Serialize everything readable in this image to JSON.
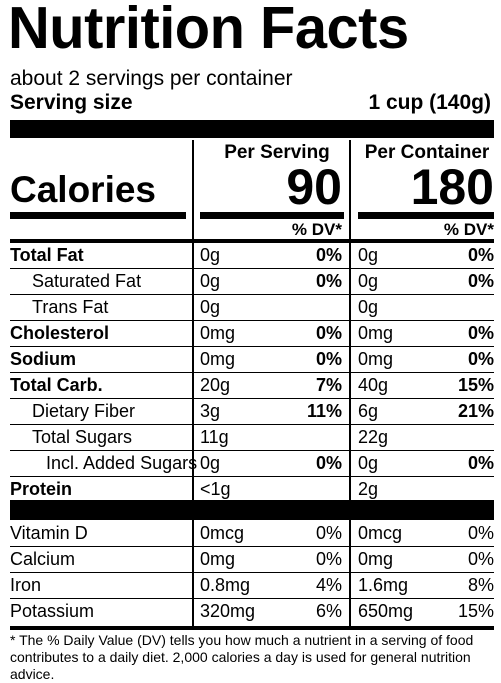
{
  "title": "Nutrition Facts",
  "servings_per_container": "about 2 servings per container",
  "serving_size_label": "Serving size",
  "serving_size_value": "1 cup (140g)",
  "per_serving_header": "Per Serving",
  "per_container_header": "Per Container",
  "calories_label": "Calories",
  "calories_serving": "90",
  "calories_container": "180",
  "dv_header": "% DV*",
  "nutrients": [
    {
      "label": "Total Fat",
      "bold": true,
      "indent": 0,
      "s_amt": "0g",
      "s_dv": "0%",
      "c_amt": "0g",
      "c_dv": "0%"
    },
    {
      "label": "Saturated Fat",
      "bold": false,
      "indent": 1,
      "s_amt": "0g",
      "s_dv": "0%",
      "c_amt": "0g",
      "c_dv": "0%"
    },
    {
      "label": "Trans Fat",
      "bold": false,
      "indent": 1,
      "s_amt": "0g",
      "s_dv": "",
      "c_amt": "0g",
      "c_dv": ""
    },
    {
      "label": "Cholesterol",
      "bold": true,
      "indent": 0,
      "s_amt": "0mg",
      "s_dv": "0%",
      "c_amt": "0mg",
      "c_dv": "0%"
    },
    {
      "label": "Sodium",
      "bold": true,
      "indent": 0,
      "s_amt": "0mg",
      "s_dv": "0%",
      "c_amt": "0mg",
      "c_dv": "0%"
    },
    {
      "label": "Total Carb.",
      "bold": true,
      "indent": 0,
      "s_amt": "20g",
      "s_dv": "7%",
      "c_amt": "40g",
      "c_dv": "15%"
    },
    {
      "label": "Dietary Fiber",
      "bold": false,
      "indent": 1,
      "s_amt": "3g",
      "s_dv": "11%",
      "c_amt": "6g",
      "c_dv": "21%"
    },
    {
      "label": "Total Sugars",
      "bold": false,
      "indent": 1,
      "s_amt": "11g",
      "s_dv": "",
      "c_amt": "22g",
      "c_dv": ""
    },
    {
      "label": "Incl. Added Sugars",
      "bold": false,
      "indent": 2,
      "s_amt": "0g",
      "s_dv": "0%",
      "c_amt": "0g",
      "c_dv": "0%"
    },
    {
      "label": "Protein",
      "bold": true,
      "indent": 0,
      "s_amt": "<1g",
      "s_dv": "",
      "c_amt": "2g",
      "c_dv": ""
    }
  ],
  "vitamins": [
    {
      "label": "Vitamin D",
      "s_amt": "0mcg",
      "s_dv": "0%",
      "c_amt": "0mcg",
      "c_dv": "0%"
    },
    {
      "label": "Calcium",
      "s_amt": "0mg",
      "s_dv": "0%",
      "c_amt": "0mg",
      "c_dv": "0%"
    },
    {
      "label": "Iron",
      "s_amt": "0.8mg",
      "s_dv": "4%",
      "c_amt": "1.6mg",
      "c_dv": "8%"
    },
    {
      "label": "Potassium",
      "s_amt": "320mg",
      "s_dv": "6%",
      "c_amt": "650mg",
      "c_dv": "15%"
    }
  ],
  "footnote": "* The % Daily Value (DV) tells you how much a nutrient in a serving of food contributes to a daily diet. 2,000 calories a day is used for general nutrition advice."
}
